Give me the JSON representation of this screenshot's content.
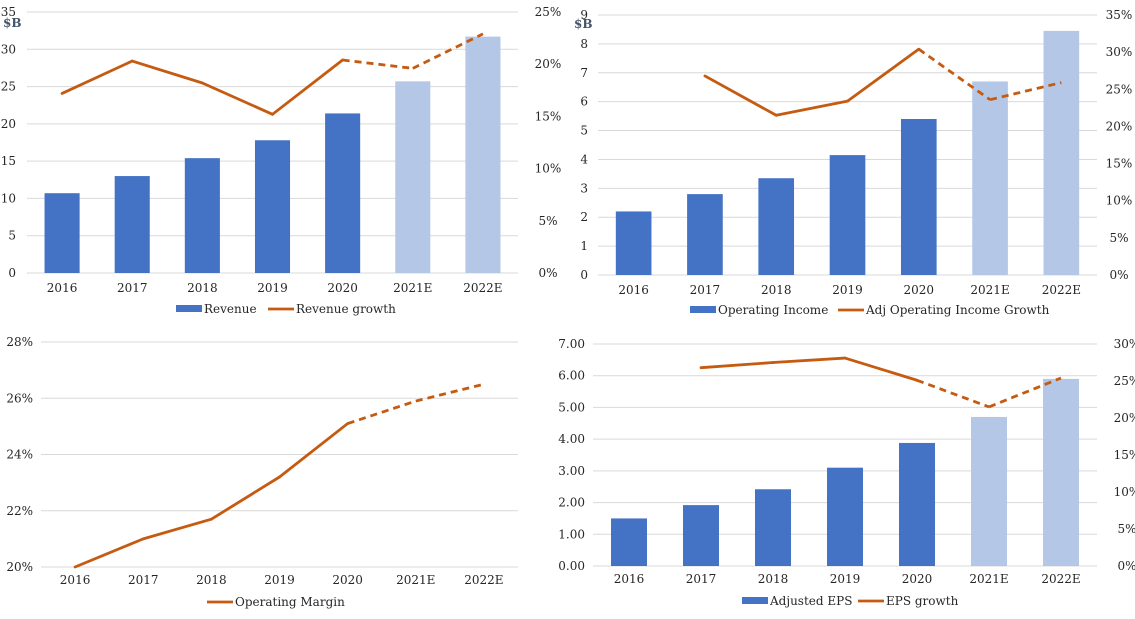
{
  "colors": {
    "bar_actual": "#4472c4",
    "bar_estimate": "#b4c7e7",
    "line": "#c55a11",
    "grid": "#d9d9d9",
    "unit": "#44546a"
  },
  "chart_data": [
    {
      "type": "bar",
      "categories": [
        "2016",
        "2017",
        "2018",
        "2019",
        "2020",
        "2021E",
        "2022E"
      ],
      "estimate_categories": [
        "2021E",
        "2022E"
      ],
      "unit_label": "$B",
      "y_left": {
        "min": 0,
        "max": 35,
        "step": 5,
        "ticks": [
          "0",
          "5",
          "10",
          "15",
          "20",
          "25",
          "30",
          "35"
        ]
      },
      "y_right": {
        "min": 0,
        "max": 25,
        "step": 5,
        "ticks": [
          "0%",
          "5%",
          "10%",
          "15%",
          "20%",
          "25%"
        ]
      },
      "grid": true,
      "legend_position": "bottom",
      "series": [
        {
          "name": "Revenue",
          "kind": "bar",
          "axis": "left",
          "values": [
            10.7,
            13.0,
            15.4,
            17.8,
            21.4,
            25.7,
            31.7
          ]
        },
        {
          "name": "Revenue growth",
          "kind": "line",
          "axis": "right",
          "dashed_from": "2020",
          "values": [
            17.2,
            20.3,
            18.2,
            15.2,
            20.4,
            19.6,
            22.9
          ]
        }
      ]
    },
    {
      "type": "bar",
      "categories": [
        "2016",
        "2017",
        "2018",
        "2019",
        "2020",
        "2021E",
        "2022E"
      ],
      "estimate_categories": [
        "2021E",
        "2022E"
      ],
      "unit_label": "$B",
      "y_left": {
        "min": 0,
        "max": 9,
        "step": 1,
        "ticks": [
          "0",
          "1",
          "2",
          "3",
          "4",
          "5",
          "6",
          "7",
          "8",
          "9"
        ]
      },
      "y_right": {
        "min": 0,
        "max": 35,
        "step": 5,
        "ticks": [
          "0%",
          "5%",
          "10%",
          "15%",
          "20%",
          "25%",
          "30%",
          "35%"
        ]
      },
      "grid": true,
      "legend_position": "bottom",
      "series": [
        {
          "name": "Operating Income",
          "kind": "bar",
          "axis": "left",
          "values": [
            2.2,
            2.8,
            3.35,
            4.15,
            5.4,
            6.7,
            8.45
          ]
        },
        {
          "name": "Adj Operating Income Growth",
          "kind": "line",
          "axis": "right",
          "dashed_from": "2020",
          "values": [
            null,
            26.8,
            21.5,
            23.4,
            30.4,
            23.6,
            25.9
          ]
        }
      ]
    },
    {
      "type": "line",
      "categories": [
        "2016",
        "2017",
        "2018",
        "2019",
        "2020",
        "2021E",
        "2022E"
      ],
      "y_left": {
        "min": 20,
        "max": 28,
        "step": 2,
        "ticks": [
          "20%",
          "22%",
          "24%",
          "26%",
          "28%"
        ]
      },
      "grid": true,
      "legend_position": "bottom",
      "series": [
        {
          "name": "Operating Margin",
          "kind": "line",
          "axis": "left",
          "dashed_from": "2020",
          "values": [
            20.0,
            21.0,
            21.7,
            23.2,
            25.1,
            25.9,
            26.5
          ]
        }
      ]
    },
    {
      "type": "bar",
      "categories": [
        "2016",
        "2017",
        "2018",
        "2019",
        "2020",
        "2021E",
        "2022E"
      ],
      "estimate_categories": [
        "2021E",
        "2022E"
      ],
      "y_left": {
        "min": 0,
        "max": 7,
        "step": 1,
        "ticks": [
          "0.00",
          "1.00",
          "2.00",
          "3.00",
          "4.00",
          "5.00",
          "6.00",
          "7.00"
        ]
      },
      "y_right": {
        "min": 0,
        "max": 30,
        "step": 5,
        "ticks": [
          "0%",
          "5%",
          "10%",
          "15%",
          "20%",
          "25%",
          "30%"
        ]
      },
      "grid": true,
      "legend_position": "bottom",
      "series": [
        {
          "name": "Adjusted EPS",
          "kind": "bar",
          "axis": "left",
          "values": [
            1.5,
            1.92,
            2.42,
            3.1,
            3.88,
            4.7,
            5.9
          ]
        },
        {
          "name": "EPS growth",
          "kind": "line",
          "axis": "right",
          "dashed_from": "2020",
          "values": [
            null,
            26.8,
            27.5,
            28.1,
            25.1,
            21.5,
            25.4
          ]
        }
      ]
    }
  ]
}
